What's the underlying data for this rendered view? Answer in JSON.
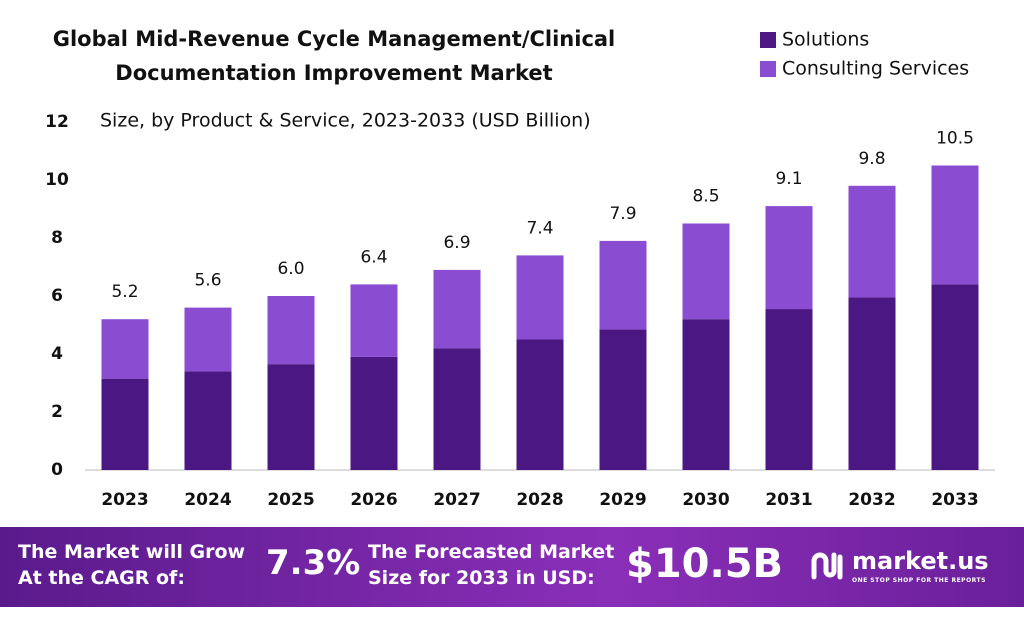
{
  "chart_data": {
    "type": "stacked_bar",
    "title": "Global Mid-Revenue Cycle Management/Clinical Documentation Improvement Market",
    "subtitle": "Size, by Product & Service, 2023-2033 (USD Billion)",
    "categories": [
      "2023",
      "2024",
      "2025",
      "2026",
      "2027",
      "2028",
      "2029",
      "2030",
      "2031",
      "2032",
      "2033"
    ],
    "series": [
      {
        "name": "Solutions",
        "color": "#4b1782",
        "values": [
          3.15,
          3.4,
          3.65,
          3.9,
          4.2,
          4.5,
          4.85,
          5.2,
          5.55,
          5.95,
          6.4
        ]
      },
      {
        "name": "Consulting Services",
        "color": "#8a4cd1",
        "values": [
          2.05,
          2.2,
          2.35,
          2.5,
          2.7,
          2.9,
          3.05,
          3.3,
          3.55,
          3.85,
          4.1
        ]
      }
    ],
    "totals": {
      "values": [
        5.2,
        5.6,
        6.0,
        6.4,
        6.9,
        7.4,
        7.9,
        8.5,
        9.1,
        9.8,
        10.5
      ],
      "value_labels": [
        "5.2",
        "5.6",
        "6.0",
        "6.4",
        "6.9",
        "7.4",
        "7.9",
        "8.5",
        "9.1",
        "9.8",
        "10.5"
      ]
    },
    "ylim": [
      0,
      12
    ],
    "yticks": [
      0,
      2,
      4,
      6,
      8,
      10,
      12
    ],
    "grid": false,
    "legend": "top-right"
  },
  "footer": {
    "cagr_label": "The Market will Grow At the CAGR of:",
    "cagr_value": "7.3%",
    "forecast_label": "The Forecasted Market Size for 2033 in USD:",
    "forecast_value": "$10.5B",
    "brand": "market.us",
    "tagline": "ONE STOP SHOP FOR THE REPORTS"
  }
}
